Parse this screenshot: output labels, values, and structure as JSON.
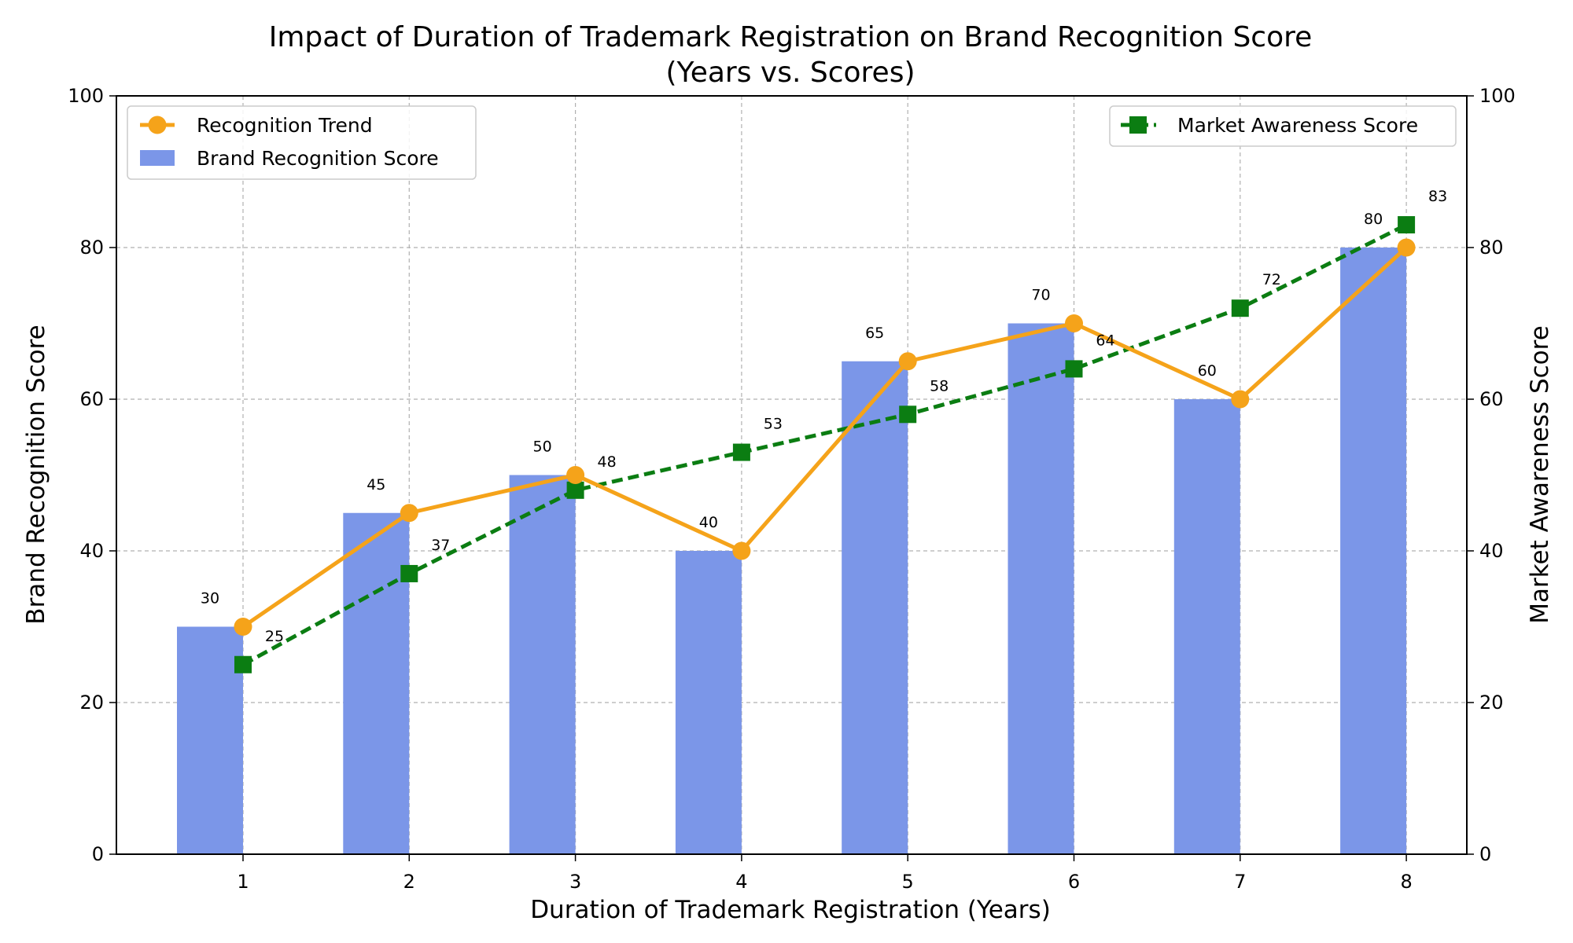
{
  "chart_data": {
    "type": "bar",
    "title": "Impact of Duration of Trademark Registration on Brand Recognition Score",
    "subtitle": "(Years vs. Scores)",
    "xlabel": "Duration of Trademark Registration (Years)",
    "ylabel": "Brand Recognition Score",
    "ylabel_right": "Market Awareness Score",
    "categories": [
      "1",
      "2",
      "3",
      "4",
      "5",
      "6",
      "7",
      "8"
    ],
    "ylim": [
      0,
      100
    ],
    "ylim_right": [
      0,
      100
    ],
    "yticks": [
      "0",
      "20",
      "40",
      "60",
      "80",
      "100"
    ],
    "yticks_right": [
      "0",
      "20",
      "40",
      "60",
      "80",
      "100"
    ],
    "grid": true,
    "series": [
      {
        "name": "Brand Recognition Score",
        "kind": "bar",
        "axis": "left",
        "color": "#7b96e8",
        "values": [
          30,
          45,
          50,
          40,
          65,
          70,
          60,
          80
        ]
      },
      {
        "name": "Recognition Trend",
        "kind": "line",
        "axis": "left",
        "color": "#f5a31a",
        "marker": "circle",
        "values": [
          30,
          45,
          50,
          40,
          65,
          70,
          60,
          80
        ]
      },
      {
        "name": "Market Awareness Score",
        "kind": "line",
        "axis": "right",
        "color": "#0b7d12",
        "marker": "square",
        "linestyle": "dashed",
        "values": [
          25,
          37,
          48,
          53,
          58,
          64,
          72,
          83
        ]
      }
    ],
    "bar_labels": [
      "30",
      "45",
      "50",
      "40",
      "65",
      "70",
      "60",
      "80"
    ],
    "awareness_labels": [
      "25",
      "37",
      "48",
      "53",
      "58",
      "64",
      "72",
      "83"
    ],
    "legend_left": [
      "Recognition Trend",
      "Brand Recognition Score"
    ],
    "legend_right": [
      "Market Awareness Score"
    ],
    "legend_left_position": "top-left",
    "legend_right_position": "top-right"
  }
}
